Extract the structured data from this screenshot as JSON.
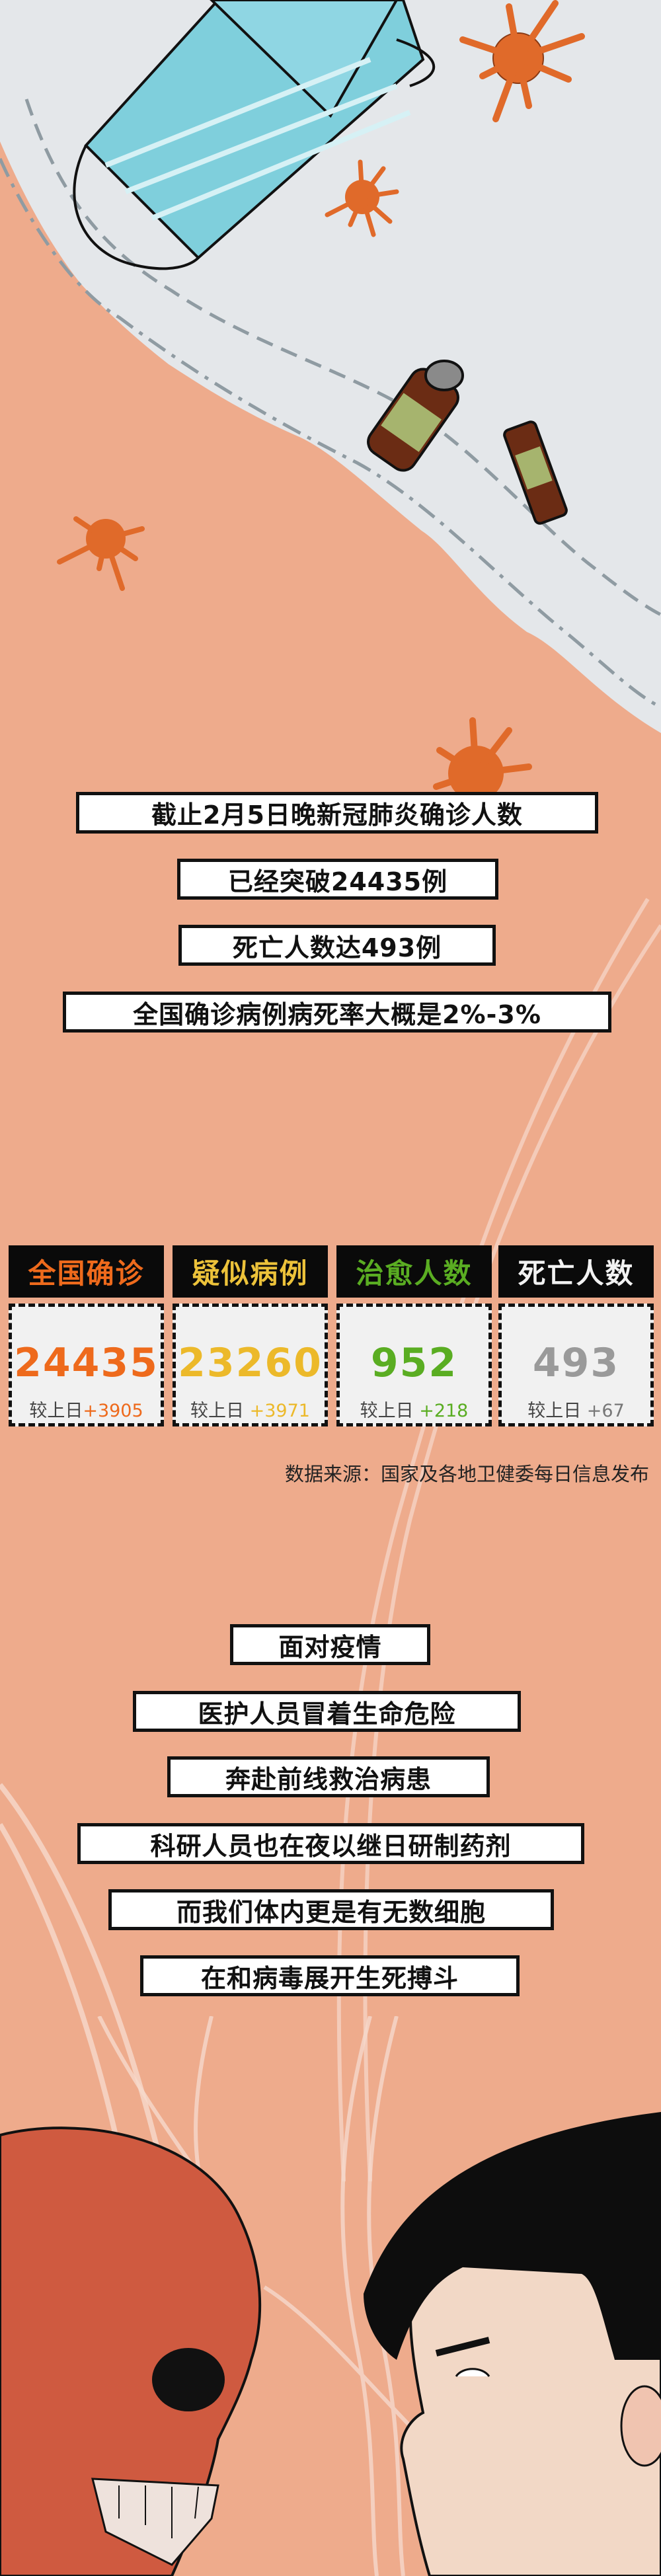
{
  "intro_lines": [
    "截止2月5日晚新冠肺炎确诊人数",
    "已经突破24435例",
    "死亡人数达493例",
    "全国确诊病例病死率大概是2%-3%"
  ],
  "stats": [
    {
      "label": "全国确诊",
      "value": "24435",
      "delta_prefix": "较上日",
      "delta": "+3905",
      "color": "#ee6a1c"
    },
    {
      "label": "疑似病例",
      "value": "23260",
      "delta_prefix": "较上日",
      "delta": "+3971",
      "color": "#ecb92a"
    },
    {
      "label": "治愈人数",
      "value": "952",
      "delta_prefix": "较上日",
      "delta": "+218",
      "color": "#5aad22"
    },
    {
      "label": "死亡人数",
      "value": "493",
      "delta_prefix": "较上日",
      "delta": "+67",
      "color": "#9a9a9a"
    }
  ],
  "source": "数据来源：国家及各地卫健委每日信息发布",
  "story_lines": [
    "面对疫情",
    "医护人员冒着生命危险",
    "奔赴前线救治病患",
    "科研人员也在夜以继日研制药剂",
    "而我们体内更是有无数细胞",
    "在和病毒展开生死搏斗"
  ],
  "colors": {
    "background": "#eeab8c",
    "mask_area": "#e4e7ea",
    "virus": "#e06a2a",
    "skull": "#cf5a40"
  }
}
